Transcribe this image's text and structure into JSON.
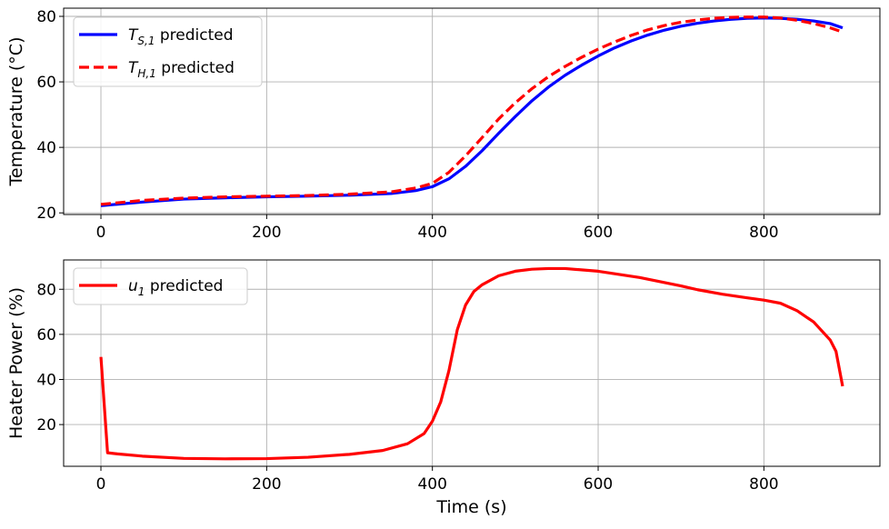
{
  "chart_data": [
    {
      "type": "line",
      "ylabel": "Temperature (°C)",
      "xlabel": "",
      "xlim": [
        -45,
        940
      ],
      "ylim": [
        19.5,
        82.5
      ],
      "xticks": [
        0,
        200,
        400,
        600,
        800
      ],
      "yticks": [
        20,
        40,
        60,
        80
      ],
      "grid": true,
      "legend_position": "top-left",
      "colors": {
        "Ts1": "#0000ff",
        "TH1": "#ff0000"
      },
      "series": [
        {
          "name": "predicted",
          "symbol": "T",
          "subscript": "S,1",
          "color": "#0000ff",
          "dash": "solid",
          "x": [
            0,
            50,
            100,
            150,
            200,
            250,
            300,
            350,
            380,
            400,
            420,
            440,
            460,
            480,
            500,
            520,
            540,
            560,
            580,
            600,
            620,
            640,
            660,
            680,
            700,
            720,
            740,
            760,
            780,
            800,
            820,
            840,
            860,
            880,
            895
          ],
          "y": [
            22.2,
            23.3,
            24.2,
            24.6,
            24.9,
            25.1,
            25.4,
            25.9,
            26.8,
            28.0,
            30.4,
            34.2,
            39.0,
            44.3,
            49.4,
            54.2,
            58.4,
            62.0,
            65.1,
            67.9,
            70.4,
            72.5,
            74.3,
            75.8,
            77.0,
            77.9,
            78.6,
            79.1,
            79.4,
            79.5,
            79.4,
            79.1,
            78.6,
            77.8,
            76.5
          ]
        },
        {
          "name": "predicted",
          "symbol": "T",
          "subscript": "H,1",
          "color": "#ff0000",
          "dash": "dashed",
          "x": [
            0,
            50,
            100,
            150,
            200,
            250,
            300,
            350,
            380,
            400,
            420,
            440,
            460,
            480,
            500,
            520,
            540,
            560,
            580,
            600,
            620,
            640,
            660,
            680,
            700,
            720,
            740,
            760,
            780,
            800,
            820,
            840,
            860,
            880,
            895
          ],
          "y": [
            22.6,
            23.8,
            24.5,
            24.9,
            25.1,
            25.3,
            25.7,
            26.4,
            27.6,
            29.0,
            32.4,
            37.4,
            43.0,
            48.7,
            53.6,
            57.9,
            61.6,
            64.7,
            67.5,
            70.0,
            72.2,
            74.2,
            75.9,
            77.2,
            78.2,
            78.9,
            79.4,
            79.7,
            79.8,
            79.8,
            79.5,
            78.8,
            77.8,
            76.5,
            75.2
          ]
        }
      ]
    },
    {
      "type": "line",
      "ylabel": "Heater Power (%)",
      "xlabel": "Time (s)",
      "xlim": [
        -45,
        940
      ],
      "ylim": [
        1.5,
        93
      ],
      "xticks": [
        0,
        200,
        400,
        600,
        800
      ],
      "yticks": [
        20,
        40,
        60,
        80
      ],
      "grid": true,
      "legend_position": "top-left",
      "colors": {
        "u1": "#ff0000"
      },
      "series": [
        {
          "name": "predicted",
          "symbol": "u",
          "subscript": "1",
          "color": "#ff0000",
          "dash": "solid",
          "x": [
            0,
            8,
            20,
            50,
            100,
            150,
            200,
            250,
            300,
            340,
            370,
            390,
            400,
            410,
            420,
            430,
            440,
            450,
            460,
            480,
            500,
            520,
            540,
            560,
            600,
            650,
            700,
            720,
            750,
            780,
            800,
            820,
            840,
            860,
            880,
            887,
            895
          ],
          "y": [
            50.0,
            7.5,
            7.0,
            6.0,
            5.0,
            4.8,
            4.9,
            5.5,
            6.8,
            8.5,
            11.5,
            16.0,
            21.5,
            30.0,
            44.0,
            62.0,
            73.0,
            79.0,
            82.0,
            86.0,
            88.0,
            88.9,
            89.2,
            89.2,
            88.0,
            85.2,
            81.5,
            79.8,
            77.8,
            76.2,
            75.2,
            73.8,
            70.5,
            65.5,
            57.5,
            52.5,
            37.0
          ]
        }
      ]
    }
  ]
}
